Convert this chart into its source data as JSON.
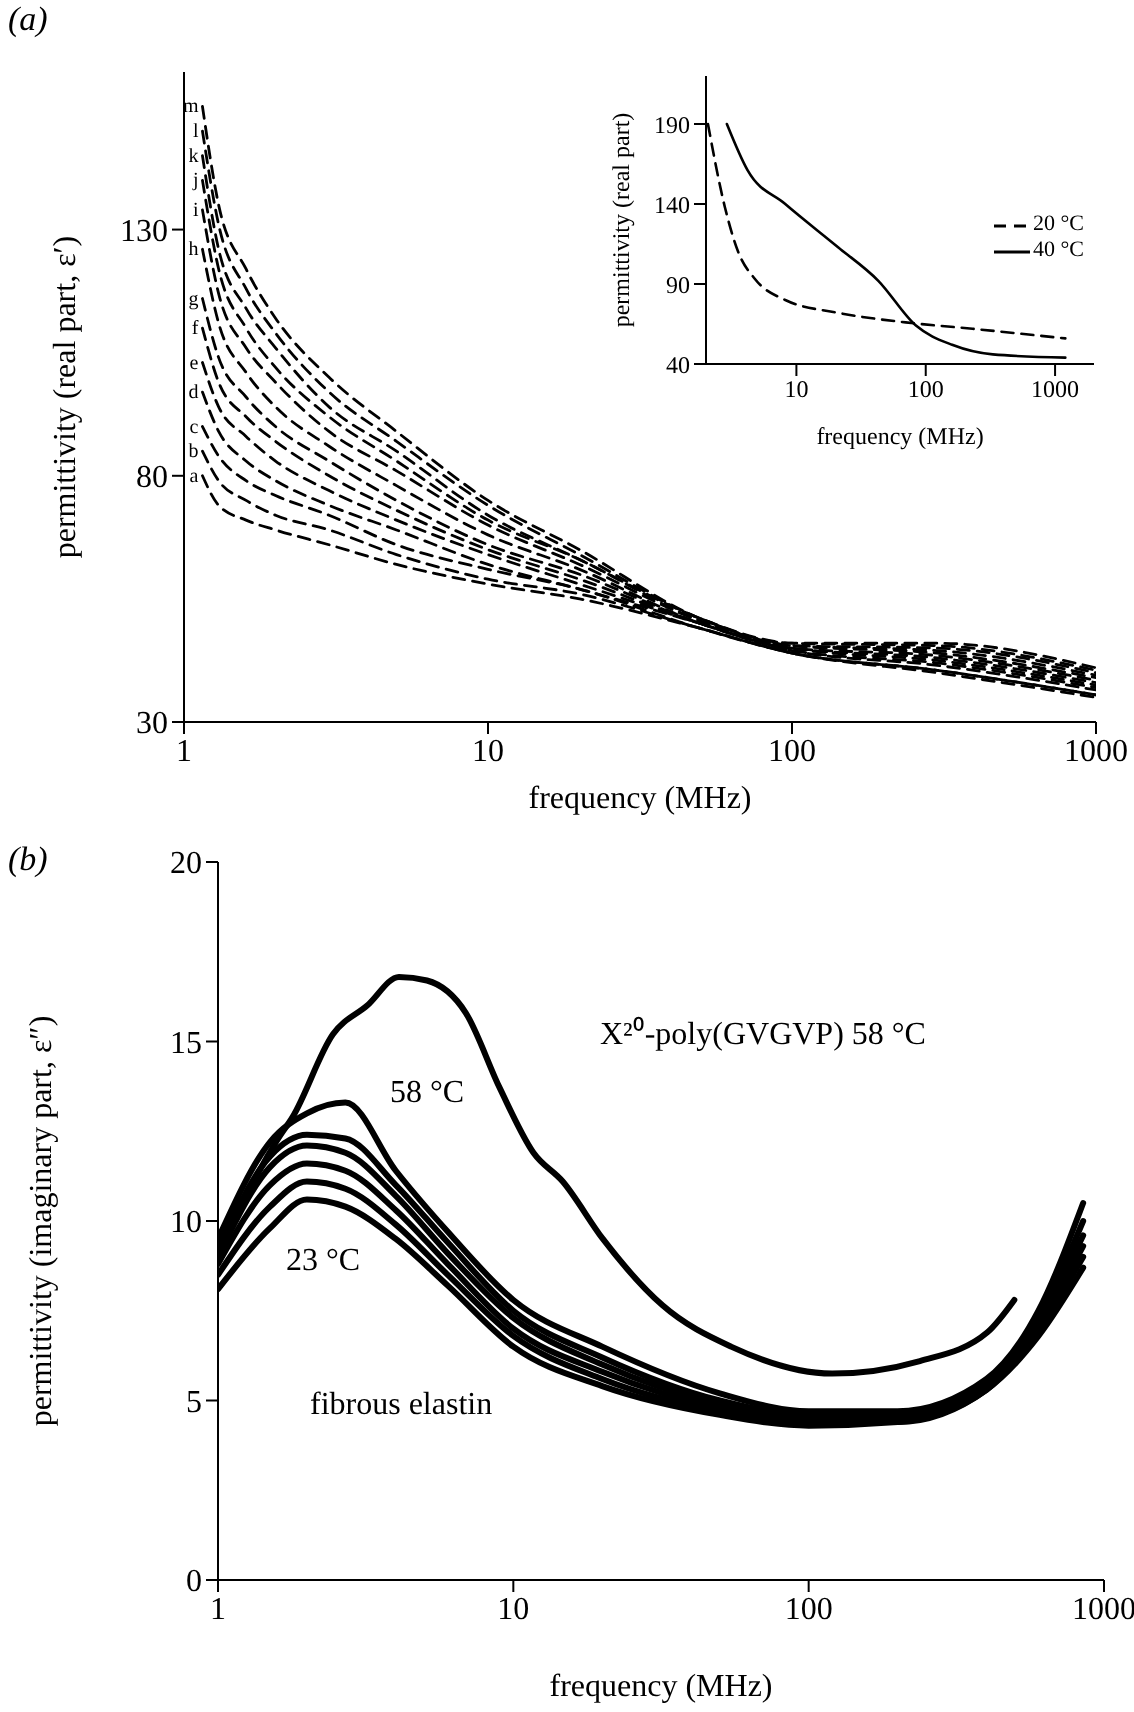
{
  "chart_data": [
    {
      "type": "line",
      "title": "(a)",
      "xlabel": "frequency (MHz)",
      "ylabel": "permittivity (real part, ε′)",
      "log": "x",
      "xlim": [
        1,
        1000
      ],
      "xticks": [
        1,
        10,
        100,
        1000
      ],
      "ylim": [
        30,
        162
      ],
      "yticks": [
        30,
        80,
        130
      ],
      "marker": "none",
      "line_style": "dashed",
      "series": [
        {
          "name": "a",
          "color": "#000000",
          "x": [
            1.15,
            1.3,
            1.6,
            2,
            3,
            5,
            10,
            20,
            50,
            100,
            300,
            1000
          ],
          "values": [
            80,
            74,
            71,
            69,
            66,
            62,
            58,
            55,
            49,
            44,
            40,
            35
          ]
        },
        {
          "name": "b",
          "color": "#000000",
          "x": [
            1.15,
            1.3,
            1.6,
            2,
            3,
            5,
            10,
            20,
            50,
            100,
            300,
            1000
          ],
          "values": [
            85,
            79,
            75,
            72,
            69,
            64,
            59,
            56,
            49,
            44,
            40.5,
            35.5
          ]
        },
        {
          "name": "c",
          "color": "#000000",
          "x": [
            1.15,
            1.3,
            1.6,
            2,
            3,
            5,
            10,
            20,
            50,
            100,
            300,
            1000
          ],
          "values": [
            90,
            84,
            79,
            76,
            72,
            66,
            61,
            57,
            49,
            44,
            40.5,
            35.5
          ]
        },
        {
          "name": "d",
          "color": "#000000",
          "x": [
            1.15,
            1.3,
            1.6,
            2,
            3,
            5,
            10,
            20,
            50,
            100,
            300,
            1000
          ],
          "values": [
            97,
            89,
            83,
            79,
            74,
            69,
            62,
            57,
            50,
            44.5,
            41.5,
            36.5
          ]
        },
        {
          "name": "e",
          "color": "#000000",
          "x": [
            1.15,
            1.3,
            1.6,
            2,
            3,
            5,
            10,
            20,
            50,
            100,
            300,
            1000
          ],
          "values": [
            103,
            94,
            88,
            83,
            77,
            71,
            64,
            58,
            50,
            44.5,
            42,
            37
          ]
        },
        {
          "name": "f",
          "color": "#000000",
          "x": [
            1.15,
            1.3,
            1.6,
            2,
            3,
            5,
            10,
            20,
            50,
            100,
            300,
            1000
          ],
          "values": [
            110,
            99,
            92,
            87,
            80,
            73,
            65,
            59,
            50,
            45,
            42.5,
            37.5
          ]
        },
        {
          "name": "g",
          "color": "#000000",
          "x": [
            1.15,
            1.3,
            1.6,
            2,
            3,
            5,
            10,
            20,
            50,
            100,
            300,
            1000
          ],
          "values": [
            116,
            104,
            96,
            90,
            83,
            75,
            66,
            60,
            50,
            45,
            43,
            38
          ]
        },
        {
          "name": "h",
          "color": "#000000",
          "x": [
            1.15,
            1.3,
            1.6,
            2,
            3,
            5,
            10,
            20,
            50,
            100,
            300,
            1000
          ],
          "values": [
            126,
            111,
            101,
            94,
            86,
            78,
            68,
            61,
            50,
            45,
            43.5,
            38.5
          ]
        },
        {
          "name": "i",
          "color": "#000000",
          "x": [
            1.15,
            1.3,
            1.6,
            2,
            3,
            5,
            10,
            20,
            50,
            100,
            300,
            1000
          ],
          "values": [
            134,
            117,
            106,
            99,
            89,
            81,
            70,
            62,
            50.5,
            45.5,
            44,
            39
          ]
        },
        {
          "name": "j",
          "color": "#000000",
          "x": [
            1.15,
            1.3,
            1.6,
            2,
            3,
            5,
            10,
            20,
            50,
            100,
            300,
            1000
          ],
          "values": [
            140,
            122,
            110,
            102,
            92,
            83,
            71,
            63,
            50.5,
            45.5,
            44.5,
            39.5
          ]
        },
        {
          "name": "k",
          "color": "#000000",
          "x": [
            1.15,
            1.3,
            1.6,
            2,
            3,
            5,
            10,
            20,
            50,
            100,
            300,
            1000
          ],
          "values": [
            145,
            126,
            114,
            106,
            94,
            85,
            72,
            63,
            51,
            45.5,
            45,
            40
          ]
        },
        {
          "name": "l",
          "color": "#000000",
          "x": [
            1.15,
            1.3,
            1.6,
            2,
            3,
            5,
            10,
            20,
            50,
            100,
            300,
            1000
          ],
          "values": [
            150,
            131,
            118,
            109,
            97,
            87,
            74,
            64,
            51,
            46,
            45.5,
            40.5
          ]
        },
        {
          "name": "m",
          "color": "#000000",
          "x": [
            1.15,
            1.3,
            1.6,
            2,
            3,
            5,
            10,
            20,
            50,
            100,
            300,
            1000
          ],
          "values": [
            155,
            135,
            122,
            112,
            100,
            89,
            75,
            65,
            51,
            46,
            46,
            41
          ]
        }
      ]
    },
    {
      "type": "line",
      "xlabel": "frequency (MHz)",
      "ylabel": "permittivity (real part)",
      "log": "x",
      "xlim": [
        2,
        2000
      ],
      "xticks": [
        10,
        100,
        1000
      ],
      "ylim": [
        40,
        220
      ],
      "yticks": [
        40,
        90,
        140,
        190
      ],
      "marker": "none",
      "legend": "right",
      "series": [
        {
          "name": "20 °C",
          "color": "#000000",
          "line_style": "dashed",
          "x": [
            2.07,
            2.8,
            3.55,
            4.8,
            8.2,
            21,
            70,
            230,
            1200
          ],
          "values": [
            190,
            138,
            110,
            93,
            80,
            72,
            66,
            62,
            56
          ]
        },
        {
          "name": "40 °C",
          "color": "#000000",
          "line_style": "solid",
          "x": [
            2.9,
            4.2,
            8.2,
            21,
            43,
            84,
            160,
            330,
            1200
          ],
          "values": [
            190,
            161,
            140,
            113,
            92,
            64,
            52,
            46,
            44
          ]
        }
      ]
    },
    {
      "type": "line",
      "title": "(b)",
      "xlabel": "frequency (MHz)",
      "ylabel": "permittivity (imaginary part, ε″)",
      "log": "x",
      "xlim": [
        1,
        1000
      ],
      "xticks": [
        1,
        10,
        100,
        1000
      ],
      "ylim": [
        0,
        20
      ],
      "yticks": [
        0,
        5,
        10,
        15,
        20
      ],
      "marker": "none",
      "line_style": "solid",
      "annotations": [
        "X²⁰-poly(GVGVP) 58 °C",
        "58 °C",
        "23 °C",
        "fibrous elastin"
      ],
      "series": [
        {
          "color": "#000000",
          "x": [
            1,
            1.3,
            1.6,
            1.79,
            2.45,
            3.2,
            4.1,
            5.1,
            6.9,
            9,
            11.7,
            14.7,
            20.1,
            32,
            54.6,
            120,
            238,
            403,
            497
          ],
          "values": [
            9.0,
            11,
            12.3,
            12.9,
            15.2,
            16,
            16.8,
            16.7,
            15.8,
            13.7,
            11.9,
            11.1,
            9.5,
            7.65,
            6.5,
            5.75,
            6.1,
            6.9,
            7.8
          ]
        },
        {
          "color": "#000000",
          "x": [
            1,
            1.5,
            2,
            2.7,
            4,
            6,
            10,
            20,
            50,
            100,
            200,
            400,
            600,
            850
          ],
          "values": [
            9.5,
            12.2,
            13.0,
            13.3,
            11.4,
            9.7,
            7.8,
            6.5,
            5.2,
            4.7,
            4.7,
            5.6,
            7.5,
            10.5
          ]
        },
        {
          "color": "#000000",
          "x": [
            1,
            1.5,
            2,
            2.7,
            4,
            6,
            10,
            20,
            50,
            100,
            200,
            400,
            600,
            850
          ],
          "values": [
            9.2,
            11.8,
            12.4,
            12.3,
            11.0,
            9.4,
            7.5,
            6.2,
            5.0,
            4.6,
            4.6,
            5.5,
            7.3,
            10.0
          ]
        },
        {
          "color": "#000000",
          "x": [
            1,
            1.5,
            2,
            2.7,
            4,
            6,
            10,
            20,
            50,
            100,
            200,
            400,
            600,
            850
          ],
          "values": [
            9.0,
            11.5,
            12.1,
            11.9,
            10.7,
            9.1,
            7.3,
            6.0,
            4.9,
            4.5,
            4.5,
            5.4,
            7.2,
            9.6
          ]
        },
        {
          "color": "#000000",
          "x": [
            1,
            1.5,
            2,
            2.7,
            4,
            6,
            10,
            20,
            50,
            100,
            200,
            400,
            600,
            850
          ],
          "values": [
            8.8,
            11.0,
            11.6,
            11.4,
            10.3,
            8.8,
            7.0,
            5.8,
            4.8,
            4.5,
            4.5,
            5.4,
            7.1,
            9.3
          ]
        },
        {
          "color": "#000000",
          "x": [
            1,
            1.5,
            2,
            2.7,
            4,
            6,
            10,
            20,
            50,
            100,
            200,
            400,
            600,
            850
          ],
          "values": [
            8.5,
            10.4,
            11.1,
            10.9,
            9.9,
            8.5,
            6.8,
            5.6,
            4.7,
            4.4,
            4.4,
            5.3,
            7.0,
            9.0
          ]
        },
        {
          "color": "#000000",
          "x": [
            1,
            1.5,
            2,
            2.7,
            4,
            6,
            10,
            20,
            50,
            100,
            200,
            400,
            600,
            850
          ],
          "values": [
            8.1,
            9.8,
            10.6,
            10.4,
            9.5,
            8.2,
            6.5,
            5.4,
            4.6,
            4.3,
            4.4,
            5.3,
            6.8,
            8.7
          ]
        }
      ]
    }
  ]
}
